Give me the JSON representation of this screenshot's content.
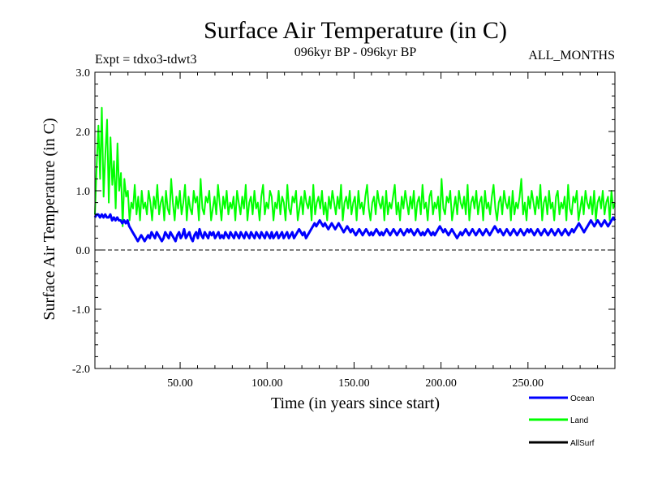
{
  "chart_data": {
    "type": "line",
    "title": "Surface Air Temperature (in C)",
    "subtitle_left": "Expt = tdxo3-tdwt3",
    "subtitle_center": "096kyr BP - 096kyr BP",
    "subtitle_right": "ALL_MONTHS",
    "xlabel": "Time (in years since start)",
    "ylabel": "Surface Air Temperature (in C)",
    "xlim": [
      1,
      300
    ],
    "ylim": [
      -2.0,
      3.0
    ],
    "x_ticks": [
      50,
      100,
      150,
      200,
      250
    ],
    "x_tick_labels": [
      "50.00",
      "100.00",
      "150.00",
      "200.00",
      "250.00"
    ],
    "y_ticks": [
      -2.0,
      -1.0,
      0.0,
      1.0,
      2.0,
      3.0
    ],
    "y_tick_labels": [
      "-2.0",
      "-1.0",
      "0.0",
      "1.0",
      "2.0",
      "3.0"
    ],
    "zero_line": true,
    "series": [
      {
        "name": "Land",
        "color": "#00ff00",
        "values": [
          0.6,
          1.4,
          2.1,
          1.2,
          2.4,
          0.9,
          1.6,
          2.2,
          0.8,
          1.9,
          1.1,
          1.5,
          0.7,
          1.8,
          1.0,
          1.3,
          0.4,
          1.2,
          0.9,
          1.0,
          0.5,
          0.8,
          0.7,
          1.1,
          0.6,
          0.9,
          0.5,
          1.0,
          0.7,
          0.8,
          0.6,
          1.0,
          0.8,
          0.5,
          0.9,
          0.7,
          1.1,
          0.6,
          0.8,
          0.9,
          0.5,
          1.0,
          0.7,
          0.6,
          1.2,
          0.8,
          0.5,
          0.9,
          0.7,
          1.0,
          0.6,
          0.8,
          1.1,
          0.5,
          0.9,
          0.7,
          0.6,
          1.0,
          0.8,
          0.9,
          0.5,
          1.2,
          0.7,
          0.6,
          0.9,
          0.8,
          1.0,
          0.5,
          0.7,
          0.9,
          0.6,
          1.1,
          0.8,
          0.5,
          0.9,
          0.7,
          1.0,
          0.6,
          0.8,
          0.7,
          0.9,
          0.5,
          1.0,
          0.8,
          0.6,
          0.9,
          0.7,
          1.1,
          0.5,
          0.8,
          0.9,
          0.6,
          1.0,
          0.7,
          0.8,
          0.5,
          0.9,
          1.1,
          0.6,
          0.8,
          0.7,
          1.0,
          0.9,
          0.5,
          0.8,
          0.7,
          1.0,
          0.6,
          0.9,
          0.8,
          0.5,
          1.1,
          0.7,
          0.6,
          0.9,
          0.8,
          1.0,
          0.5,
          0.7,
          0.9,
          0.6,
          1.0,
          0.8,
          0.7,
          0.9,
          0.5,
          1.1,
          0.6,
          0.8,
          0.9,
          0.7,
          1.0,
          0.6,
          0.8,
          0.5,
          0.9,
          0.7,
          1.0,
          0.8,
          0.6,
          0.9,
          0.7,
          1.1,
          0.5,
          0.8,
          0.9,
          0.7,
          1.0,
          0.6,
          0.8,
          0.9,
          0.5,
          1.0,
          0.7,
          0.8,
          0.6,
          0.9,
          1.1,
          0.7,
          0.5,
          0.8,
          0.9,
          0.6,
          1.0,
          0.8,
          0.7,
          0.9,
          0.5,
          1.0,
          0.6,
          0.8,
          0.7,
          0.9,
          1.1,
          0.6,
          0.8,
          0.5,
          0.9,
          0.7,
          1.0,
          0.8,
          0.6,
          0.9,
          0.7,
          1.0,
          0.5,
          0.8,
          0.9,
          0.6,
          1.1,
          0.7,
          0.8,
          0.5,
          0.9,
          1.0,
          0.6,
          0.8,
          0.7,
          0.9,
          0.5,
          1.2,
          0.7,
          0.6,
          0.9,
          0.8,
          1.0,
          0.5,
          0.7,
          0.9,
          0.6,
          1.0,
          0.8,
          0.7,
          0.9,
          0.6,
          1.1,
          0.5,
          0.8,
          0.9,
          0.7,
          1.0,
          0.6,
          0.8,
          0.9,
          0.5,
          1.0,
          0.7,
          0.8,
          0.6,
          0.9,
          1.1,
          0.7,
          0.5,
          0.8,
          0.9,
          0.6,
          1.0,
          0.8,
          0.7,
          0.9,
          0.5,
          1.0,
          0.6,
          0.8,
          0.7,
          0.9,
          1.2,
          0.6,
          0.8,
          0.5,
          0.9,
          0.7,
          1.0,
          0.8,
          0.6,
          0.9,
          0.7,
          1.1,
          0.5,
          0.8,
          0.9,
          0.6,
          1.0,
          0.7,
          0.8,
          0.5,
          0.9,
          1.0,
          0.6,
          0.8,
          0.7,
          0.9,
          0.5,
          1.1,
          0.7,
          0.6,
          0.9,
          0.8,
          1.0,
          0.5,
          0.7,
          0.9,
          0.6,
          1.0,
          0.8,
          0.7,
          0.9,
          0.6,
          1.0,
          0.5,
          0.8,
          0.9,
          0.7,
          1.0,
          0.6,
          0.8,
          0.9,
          0.5,
          1.0,
          0.7,
          0.8
        ]
      },
      {
        "name": "Ocean",
        "color": "#0000ff",
        "values": [
          0.55,
          0.6,
          0.6,
          0.55,
          0.6,
          0.55,
          0.6,
          0.55,
          0.55,
          0.6,
          0.5,
          0.55,
          0.5,
          0.55,
          0.5,
          0.5,
          0.45,
          0.5,
          0.45,
          0.5,
          0.4,
          0.35,
          0.3,
          0.25,
          0.2,
          0.15,
          0.2,
          0.25,
          0.2,
          0.15,
          0.2,
          0.25,
          0.2,
          0.3,
          0.25,
          0.2,
          0.3,
          0.25,
          0.2,
          0.15,
          0.2,
          0.3,
          0.25,
          0.2,
          0.3,
          0.25,
          0.2,
          0.15,
          0.25,
          0.3,
          0.2,
          0.25,
          0.35,
          0.2,
          0.25,
          0.3,
          0.2,
          0.15,
          0.25,
          0.3,
          0.2,
          0.35,
          0.25,
          0.2,
          0.3,
          0.25,
          0.2,
          0.3,
          0.25,
          0.3,
          0.2,
          0.25,
          0.3,
          0.2,
          0.25,
          0.2,
          0.3,
          0.25,
          0.2,
          0.3,
          0.25,
          0.2,
          0.3,
          0.25,
          0.2,
          0.3,
          0.25,
          0.2,
          0.3,
          0.25,
          0.2,
          0.3,
          0.25,
          0.2,
          0.3,
          0.25,
          0.2,
          0.3,
          0.25,
          0.2,
          0.3,
          0.25,
          0.2,
          0.3,
          0.2,
          0.25,
          0.3,
          0.2,
          0.25,
          0.3,
          0.2,
          0.25,
          0.3,
          0.2,
          0.25,
          0.3,
          0.2,
          0.25,
          0.3,
          0.35,
          0.3,
          0.25,
          0.3,
          0.2,
          0.25,
          0.3,
          0.35,
          0.4,
          0.45,
          0.4,
          0.45,
          0.5,
          0.45,
          0.4,
          0.45,
          0.4,
          0.35,
          0.4,
          0.45,
          0.4,
          0.35,
          0.4,
          0.45,
          0.4,
          0.35,
          0.3,
          0.35,
          0.4,
          0.35,
          0.3,
          0.35,
          0.3,
          0.25,
          0.3,
          0.35,
          0.3,
          0.25,
          0.3,
          0.35,
          0.3,
          0.25,
          0.3,
          0.25,
          0.3,
          0.35,
          0.3,
          0.25,
          0.3,
          0.25,
          0.3,
          0.35,
          0.3,
          0.25,
          0.3,
          0.35,
          0.3,
          0.25,
          0.3,
          0.35,
          0.3,
          0.25,
          0.3,
          0.35,
          0.3,
          0.35,
          0.3,
          0.25,
          0.3,
          0.35,
          0.3,
          0.25,
          0.3,
          0.25,
          0.3,
          0.35,
          0.3,
          0.25,
          0.3,
          0.25,
          0.3,
          0.35,
          0.4,
          0.35,
          0.3,
          0.35,
          0.3,
          0.25,
          0.3,
          0.35,
          0.3,
          0.25,
          0.2,
          0.25,
          0.3,
          0.25,
          0.3,
          0.35,
          0.3,
          0.25,
          0.3,
          0.35,
          0.3,
          0.25,
          0.3,
          0.35,
          0.3,
          0.25,
          0.3,
          0.35,
          0.3,
          0.25,
          0.3,
          0.35,
          0.4,
          0.35,
          0.3,
          0.35,
          0.3,
          0.25,
          0.3,
          0.35,
          0.3,
          0.25,
          0.3,
          0.35,
          0.3,
          0.25,
          0.3,
          0.35,
          0.3,
          0.25,
          0.3,
          0.35,
          0.3,
          0.35,
          0.3,
          0.25,
          0.3,
          0.35,
          0.3,
          0.25,
          0.3,
          0.35,
          0.3,
          0.25,
          0.3,
          0.35,
          0.3,
          0.25,
          0.3,
          0.35,
          0.3,
          0.25,
          0.3,
          0.35,
          0.3,
          0.25,
          0.3,
          0.35,
          0.3,
          0.35,
          0.4,
          0.45,
          0.4,
          0.35,
          0.3,
          0.35,
          0.4,
          0.45,
          0.5,
          0.45,
          0.4,
          0.45,
          0.5,
          0.45,
          0.4,
          0.45,
          0.5,
          0.45,
          0.4,
          0.45,
          0.5,
          0.55,
          0.5
        ]
      },
      {
        "name": "AllSurf",
        "color": "#000000",
        "values": []
      }
    ],
    "legend": [
      "Ocean",
      "Land",
      "AllSurf"
    ],
    "legend_colors": [
      "#0000ff",
      "#00ff00",
      "#000000"
    ],
    "legend_position": "bottom-right"
  }
}
